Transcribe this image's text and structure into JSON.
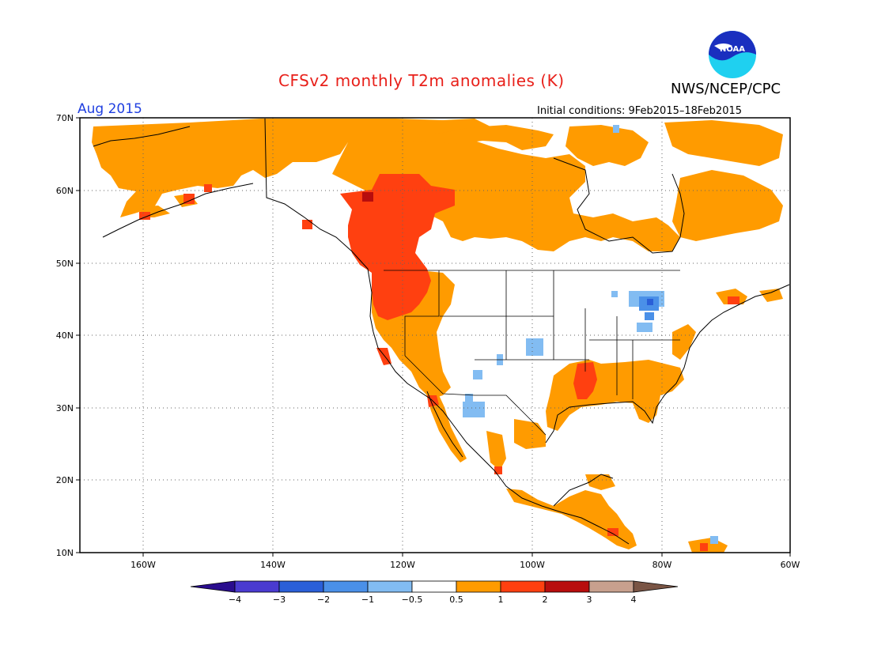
{
  "title": "CFSv2 monthly T2m anomalies (K)",
  "agency": "NWS/NCEP/CPC",
  "valid_month": "Aug 2015",
  "initial_conditions": "Initial conditions: 9Feb2015–18Feb2015",
  "logo_text": "NOAA",
  "lat_labels": [
    "70N",
    "60N",
    "50N",
    "40N",
    "30N",
    "20N",
    "10N"
  ],
  "lon_labels": [
    "160W",
    "140W",
    "120W",
    "100W",
    "80W",
    "60W"
  ],
  "colorbar": {
    "labels": [
      "−4",
      "−3",
      "−2",
      "−1",
      "−0.5",
      "0.5",
      "1",
      "2",
      "3",
      "4"
    ],
    "colors": [
      "#2a0d8e",
      "#4a3bd0",
      "#2a5fd8",
      "#4a90e8",
      "#82bcf2",
      "#ffffff",
      "#ff9b00",
      "#ff4010",
      "#b80d0d",
      "#c8a08e",
      "#7a5545"
    ]
  },
  "anomaly_colors": {
    "warm_05_1": "#ff9b00",
    "warm_1_2": "#ff4010",
    "warm_2_3": "#b80d0d",
    "cool_05_1": "#82bcf2",
    "cool_1_2": "#4a90e8",
    "cool_2_3": "#2a5fd8"
  }
}
